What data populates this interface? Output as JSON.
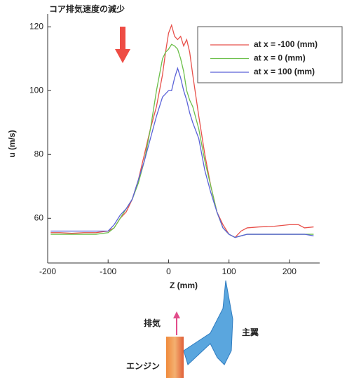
{
  "chart_data": {
    "type": "line",
    "annotation": "コア排気速度の減少",
    "xlabel": "Z (mm)",
    "ylabel": "u (m/s)",
    "x": [
      -195,
      -180,
      -160,
      -140,
      -120,
      -100,
      -90,
      -80,
      -70,
      -60,
      -50,
      -40,
      -30,
      -20,
      -10,
      -5,
      0,
      5,
      10,
      15,
      20,
      25,
      30,
      35,
      40,
      50,
      60,
      70,
      80,
      90,
      100,
      110,
      120,
      130,
      150,
      175,
      200,
      215,
      225,
      240
    ],
    "series": [
      {
        "name": "at x = -100 (mm)",
        "color": "#e8504a",
        "values": [
          55.5,
          55.5,
          55.3,
          55.5,
          55.5,
          56,
          57,
          60,
          62,
          66,
          72,
          80,
          88,
          95,
          105,
          112,
          118,
          120.5,
          117,
          116,
          117,
          114,
          116,
          112,
          105,
          92,
          80,
          70,
          62,
          58,
          55,
          54,
          56,
          57,
          57.3,
          57.5,
          58,
          58,
          57,
          57.3
        ]
      },
      {
        "name": "at x = 0 (mm)",
        "color": "#6cbf4a",
        "values": [
          55,
          55,
          55,
          55,
          55,
          55.5,
          57,
          60,
          63,
          66,
          71,
          78,
          88,
          100,
          110,
          112,
          113,
          114.5,
          114,
          113,
          110,
          106,
          100,
          97,
          95,
          88,
          78,
          70,
          62,
          57,
          55,
          54,
          54.5,
          55,
          55,
          55,
          55,
          55,
          55,
          55
        ]
      },
      {
        "name": "at x = 100 (mm)",
        "color": "#5a62d8",
        "values": [
          56,
          56,
          56,
          56,
          56,
          56,
          58,
          61,
          63,
          66,
          72,
          78,
          85,
          92,
          98,
          99,
          100,
          100,
          104,
          107,
          104,
          100,
          97,
          93,
          90,
          85,
          75,
          68,
          62,
          57,
          55,
          54,
          54.5,
          55,
          55,
          55,
          55,
          55,
          55,
          54.5
        ]
      }
    ],
    "xlim": [
      -200,
      250
    ],
    "ylim": [
      46,
      124
    ],
    "xticks": [
      -200,
      -100,
      0,
      100,
      200
    ],
    "yticks": [
      60,
      80,
      100,
      120
    ]
  },
  "diagram": {
    "exhaust_label": "排気",
    "wing_label": "主翼",
    "engine_label": "エンジン"
  }
}
